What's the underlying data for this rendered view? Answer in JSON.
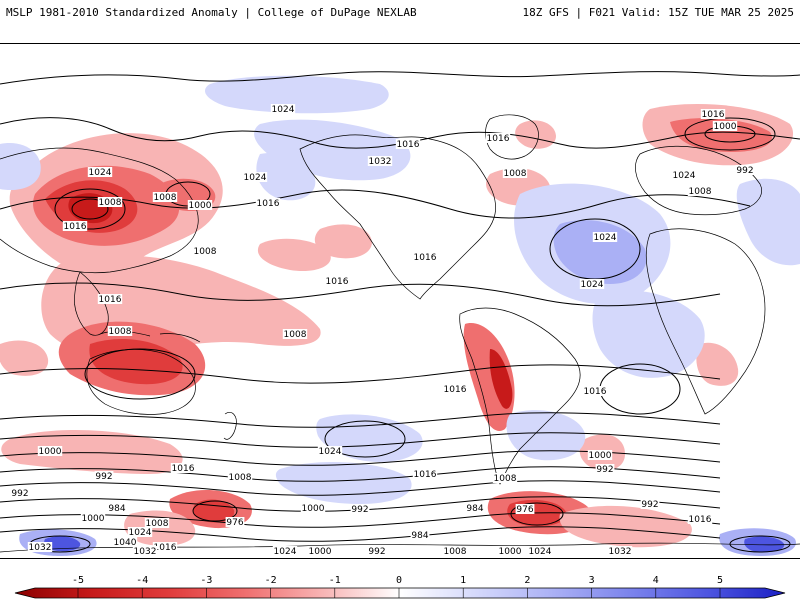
{
  "header": {
    "left_title": "MSLP 1981-2010 Standardized Anomaly | College of DuPage NEXLAB",
    "right_title": "18Z GFS | F021 Valid: 15Z TUE MAR 25 2025"
  },
  "colors": {
    "neg5": "#8b0000",
    "neg4": "#c71a1a",
    "neg3": "#e03c3c",
    "neg2": "#ef6f6f",
    "neg1": "#f8b4b4",
    "zero": "#ffffff",
    "pos1": "#d4d8fb",
    "pos2": "#aab0f5",
    "pos3": "#7b83ec",
    "pos4": "#4d55e0",
    "pos5": "#1a1fc4"
  },
  "colorbar": {
    "ticks": [
      {
        "label": "-5",
        "value": -5
      },
      {
        "label": "-4",
        "value": -4
      },
      {
        "label": "-3",
        "value": -3
      },
      {
        "label": "-2",
        "value": -2
      },
      {
        "label": "-1",
        "value": -1
      },
      {
        "label": "0",
        "value": 0
      },
      {
        "label": "1",
        "value": 1
      },
      {
        "label": "2",
        "value": 2
      },
      {
        "label": "3",
        "value": 3
      },
      {
        "label": "4",
        "value": 4
      },
      {
        "label": "5",
        "value": 5
      }
    ]
  },
  "isobar_labels": [
    "1024",
    "1016",
    "1024",
    "1024",
    "1000",
    "1016",
    "1008",
    "992",
    "1032",
    "1016",
    "1008",
    "1024",
    "1024",
    "1016",
    "1016",
    "1008",
    "1000",
    "1016",
    "1024",
    "1008",
    "1008",
    "1008",
    "1016",
    "1016",
    "1008",
    "1024",
    "1016",
    "1000",
    "992",
    "1016",
    "1008",
    "1016",
    "1016",
    "1008",
    "992",
    "1000",
    "992",
    "1032",
    "1000",
    "984",
    "976",
    "1008",
    "1024",
    "1016",
    "1040",
    "1000",
    "992",
    "984",
    "976",
    "984",
    "992",
    "1016",
    "1008",
    "1000",
    "1024",
    "1032",
    "1024",
    "1000",
    "992",
    "1032"
  ]
}
